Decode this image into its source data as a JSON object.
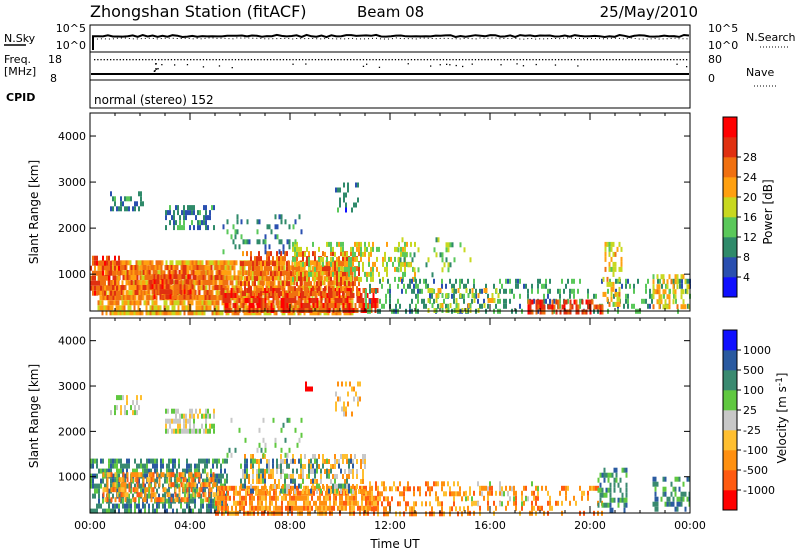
{
  "header": {
    "title": "Zhongshan Station (fitACF)",
    "beam": "Beam 08",
    "date": "25/May/2010"
  },
  "nsky_panel": {
    "left_label": "N.Sky",
    "left_ticks": [
      "10^5",
      "10^0"
    ],
    "right_label": "N.Search",
    "right_ticks": [
      "10^5",
      "10^0"
    ]
  },
  "freq_panel": {
    "left_label_1": "Freq.",
    "left_label_2": "[MHz]",
    "left_ticks": [
      "18",
      "8"
    ],
    "right_label": "Nave",
    "right_ticks": [
      "80",
      "0"
    ]
  },
  "cpid": {
    "label": "CPID",
    "value": "normal (stereo) 152"
  },
  "colors": {
    "power_scale": [
      "#1010ff",
      "#2a4fb0",
      "#2f8a6a",
      "#5ac85a",
      "#c8d820",
      "#ffa010",
      "#f07010",
      "#e03010",
      "#ff0000"
    ],
    "velocity_scale": [
      "#ff0000",
      "#ff5a10",
      "#ff9010",
      "#ffbf30",
      "#c8c8c8",
      "#60c840",
      "#3a8a70",
      "#2a5aa0",
      "#1010ff"
    ]
  },
  "chart_data": [
    {
      "type": "heatmap",
      "name": "power",
      "ylabel": "Slant Range [km]",
      "yticks": [
        "1000",
        "2000",
        "3000",
        "4000"
      ],
      "ylim": [
        200,
        4500
      ],
      "xlim": [
        0,
        24
      ],
      "colorbar": {
        "label": "Power [dB]",
        "ticks": [
          "4",
          "8",
          "12",
          "16",
          "20",
          "24",
          "28"
        ],
        "range": [
          0,
          32
        ]
      },
      "regions": [
        {
          "t": [
            0.3,
            10.5
          ],
          "r": [
            200,
            1300
          ],
          "v": 20,
          "p": 0.8
        },
        {
          "t": [
            0.5,
            5.5
          ],
          "r": [
            500,
            1200
          ],
          "v": 24,
          "p": 0.7
        },
        {
          "t": [
            2.3,
            4.2
          ],
          "r": [
            500,
            1000
          ],
          "v": 27,
          "p": 0.6
        },
        {
          "t": [
            5.3,
            11.5
          ],
          "r": [
            200,
            700
          ],
          "v": 28,
          "p": 0.7
        },
        {
          "t": [
            6.0,
            10.8
          ],
          "r": [
            600,
            1500
          ],
          "v": 25,
          "p": 0.55
        },
        {
          "t": [
            0.0,
            1.2
          ],
          "r": [
            600,
            1400
          ],
          "v": 26,
          "p": 0.6
        },
        {
          "t": [
            8.0,
            13.0
          ],
          "r": [
            900,
            1700
          ],
          "v": 15,
          "p": 0.35
        },
        {
          "t": [
            11.0,
            24.0
          ],
          "r": [
            200,
            900
          ],
          "v": 9,
          "p": 0.28
        },
        {
          "t": [
            13.5,
            16.5
          ],
          "r": [
            200,
            700
          ],
          "v": 16,
          "p": 0.3
        },
        {
          "t": [
            17.5,
            20.5
          ],
          "r": [
            200,
            450
          ],
          "v": 27,
          "p": 0.55
        },
        {
          "t": [
            20.5,
            21.3
          ],
          "r": [
            300,
            1700
          ],
          "v": 18,
          "p": 0.45
        },
        {
          "t": [
            22.5,
            24.0
          ],
          "r": [
            300,
            1000
          ],
          "v": 18,
          "p": 0.4
        },
        {
          "t": [
            0.8,
            2.1
          ],
          "r": [
            2400,
            2800
          ],
          "v": 7,
          "p": 0.35
        },
        {
          "t": [
            3.0,
            5.0
          ],
          "r": [
            2000,
            2500
          ],
          "v": 7,
          "p": 0.5
        },
        {
          "t": [
            5.3,
            8.5
          ],
          "r": [
            1500,
            2300
          ],
          "v": 8,
          "p": 0.15
        },
        {
          "t": [
            9.8,
            10.8
          ],
          "r": [
            2400,
            3100
          ],
          "v": 6,
          "p": 0.25
        },
        {
          "t": [
            12.3,
            15.2
          ],
          "r": [
            1000,
            1800
          ],
          "v": 12,
          "p": 0.12
        }
      ]
    },
    {
      "type": "heatmap",
      "name": "velocity",
      "ylabel": "Slant Range [km]",
      "yticks": [
        "1000",
        "2000",
        "3000",
        "4000"
      ],
      "ylim": [
        200,
        4500
      ],
      "xlim": [
        0,
        24
      ],
      "xticks": [
        "00:00",
        "04:00",
        "08:00",
        "12:00",
        "16:00",
        "20:00",
        "00:00"
      ],
      "xlabel": "Time UT",
      "colorbar": {
        "label": "Velocity [m s^-1]",
        "ticks": [
          "-1000",
          "-500",
          "-100",
          "-25",
          "25",
          "100",
          "500",
          "1000"
        ],
        "range": [
          0,
          9
        ]
      },
      "regions": [
        {
          "t": [
            0.0,
            5.5
          ],
          "r": [
            200,
            1400
          ],
          "v": 6,
          "p": 0.6
        },
        {
          "t": [
            0.5,
            5.0
          ],
          "r": [
            500,
            1100
          ],
          "v": 2,
          "p": 0.5
        },
        {
          "t": [
            5.0,
            11.5
          ],
          "r": [
            200,
            800
          ],
          "v": 2,
          "p": 0.75
        },
        {
          "t": [
            6.0,
            11.0
          ],
          "r": [
            700,
            1500
          ],
          "v": 3,
          "p": 0.45
        },
        {
          "t": [
            6.0,
            10.5
          ],
          "r": [
            700,
            1400
          ],
          "v": 6,
          "p": 0.25
        },
        {
          "t": [
            11.0,
            15.0
          ],
          "r": [
            200,
            900
          ],
          "v": 2,
          "p": 0.35
        },
        {
          "t": [
            15.0,
            20.5
          ],
          "r": [
            200,
            800
          ],
          "v": 2,
          "p": 0.25
        },
        {
          "t": [
            15.0,
            18.5
          ],
          "r": [
            400,
            900
          ],
          "v": 4,
          "p": 0.15
        },
        {
          "t": [
            20.3,
            21.5
          ],
          "r": [
            300,
            1200
          ],
          "v": 6,
          "p": 0.45
        },
        {
          "t": [
            22.5,
            24.0
          ],
          "r": [
            300,
            1000
          ],
          "v": 6,
          "p": 0.4
        },
        {
          "t": [
            0.8,
            2.1
          ],
          "r": [
            2400,
            2800
          ],
          "v": 4,
          "p": 0.4
        },
        {
          "t": [
            3.0,
            5.0
          ],
          "r": [
            2000,
            2500
          ],
          "v": 4,
          "p": 0.55
        },
        {
          "t": [
            5.3,
            8.5
          ],
          "r": [
            1500,
            2300
          ],
          "v": 5,
          "p": 0.12
        },
        {
          "t": [
            9.8,
            10.8
          ],
          "r": [
            2400,
            3100
          ],
          "v": 3,
          "p": 0.25
        },
        {
          "t": [
            8.6,
            9.0
          ],
          "r": [
            2900,
            3100
          ],
          "v": 0,
          "p": 0.6
        }
      ]
    }
  ]
}
